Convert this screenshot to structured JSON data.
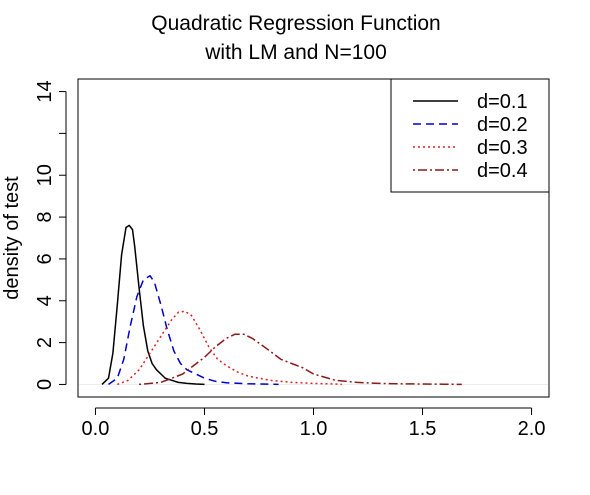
{
  "chart_data": {
    "type": "line",
    "title": [
      "Quadratic Regression Function",
      "with LM and N=100"
    ],
    "xlabel": "",
    "ylabel": "density of test",
    "xlim": [
      -0.08,
      2.08
    ],
    "ylim": [
      -0.6,
      14.6
    ],
    "xticks": [
      {
        "value": 0.0,
        "label": "0.0"
      },
      {
        "value": 0.5,
        "label": "0.5"
      },
      {
        "value": 1.0,
        "label": "1.0"
      },
      {
        "value": 1.5,
        "label": "1.5"
      },
      {
        "value": 2.0,
        "label": "2.0"
      }
    ],
    "yticks": [
      {
        "value": 0,
        "label": "0"
      },
      {
        "value": 2,
        "label": "2"
      },
      {
        "value": 4,
        "label": "4"
      },
      {
        "value": 6,
        "label": "6"
      },
      {
        "value": 8,
        "label": "8"
      },
      {
        "value": 10,
        "label": "10"
      },
      {
        "value": 12,
        "label": ""
      },
      {
        "value": 14,
        "label": "14"
      }
    ],
    "grid": false,
    "legend_position": "top-right",
    "series": [
      {
        "name": "d=0.1",
        "color": "#000000",
        "dash": "solid",
        "x": [
          0.03,
          0.06,
          0.08,
          0.1,
          0.12,
          0.14,
          0.155,
          0.17,
          0.18,
          0.2,
          0.22,
          0.24,
          0.26,
          0.28,
          0.3,
          0.32,
          0.35,
          0.38,
          0.42,
          0.46,
          0.5
        ],
        "y": [
          0.0,
          0.3,
          1.5,
          3.8,
          6.2,
          7.5,
          7.6,
          7.4,
          6.6,
          4.6,
          2.8,
          1.6,
          1.0,
          0.7,
          0.5,
          0.3,
          0.2,
          0.1,
          0.05,
          0.02,
          0.0
        ]
      },
      {
        "name": "d=0.2",
        "color": "#0000cc",
        "dash": "dashed",
        "x": [
          0.06,
          0.1,
          0.13,
          0.16,
          0.19,
          0.22,
          0.25,
          0.27,
          0.3,
          0.33,
          0.36,
          0.39,
          0.42,
          0.46,
          0.5,
          0.55,
          0.6,
          0.7,
          0.8,
          0.84
        ],
        "y": [
          0.0,
          0.3,
          1.2,
          2.8,
          4.2,
          5.0,
          5.2,
          4.9,
          3.8,
          2.6,
          1.6,
          1.0,
          0.7,
          0.5,
          0.3,
          0.15,
          0.08,
          0.03,
          0.01,
          0.0
        ]
      },
      {
        "name": "d=0.3",
        "color": "#dd2222",
        "dash": "dotted",
        "x": [
          0.1,
          0.15,
          0.2,
          0.25,
          0.3,
          0.35,
          0.38,
          0.41,
          0.44,
          0.48,
          0.52,
          0.56,
          0.6,
          0.65,
          0.7,
          0.75,
          0.8,
          0.9,
          1.0,
          1.1,
          1.13
        ],
        "y": [
          0.0,
          0.2,
          0.7,
          1.5,
          2.3,
          3.1,
          3.45,
          3.5,
          3.3,
          2.6,
          1.8,
          1.2,
          0.9,
          0.6,
          0.4,
          0.3,
          0.2,
          0.1,
          0.05,
          0.02,
          0.0
        ]
      },
      {
        "name": "d=0.4",
        "color": "#8b1a1a",
        "dash": "dotdash",
        "x": [
          0.2,
          0.3,
          0.4,
          0.45,
          0.5,
          0.55,
          0.6,
          0.64,
          0.68,
          0.72,
          0.76,
          0.8,
          0.85,
          0.9,
          0.95,
          1.0,
          1.05,
          1.1,
          1.2,
          1.3,
          1.4,
          1.5,
          1.6,
          1.68
        ],
        "y": [
          0.0,
          0.1,
          0.5,
          0.9,
          1.3,
          1.8,
          2.2,
          2.4,
          2.4,
          2.2,
          1.9,
          1.6,
          1.2,
          1.0,
          0.8,
          0.5,
          0.35,
          0.2,
          0.1,
          0.05,
          0.03,
          0.02,
          0.01,
          0.0
        ]
      }
    ]
  }
}
